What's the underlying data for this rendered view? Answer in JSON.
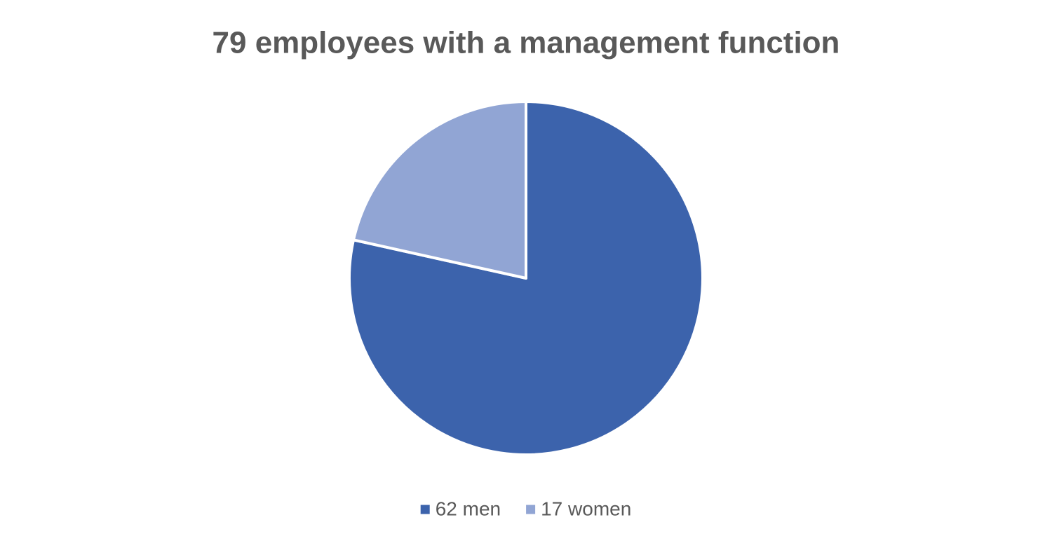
{
  "chart_data": {
    "type": "pie",
    "title": "79 employees with a management function",
    "categories": [
      "62 men",
      "17 women"
    ],
    "values": [
      62,
      17
    ],
    "colors": [
      "#3c63ac",
      "#91a5d4"
    ],
    "legend": "bottom"
  }
}
